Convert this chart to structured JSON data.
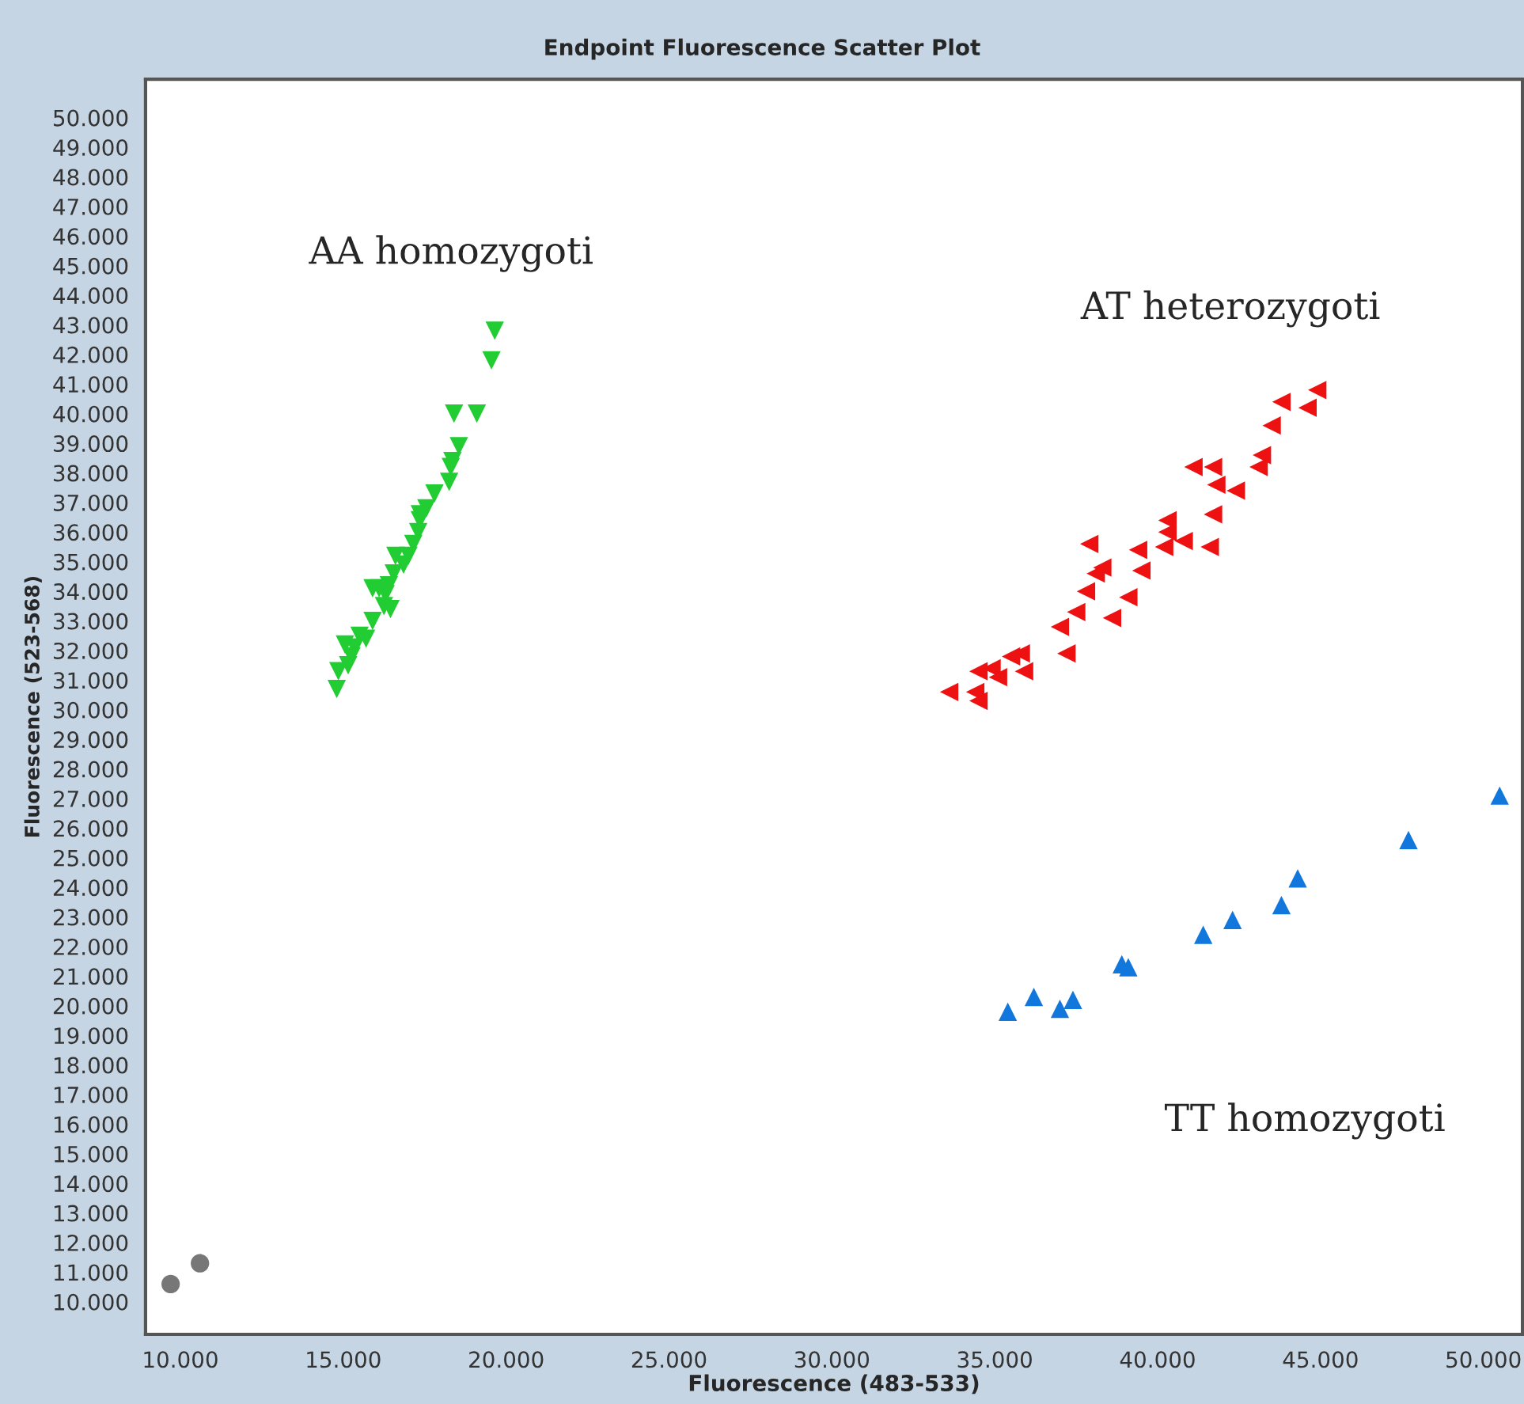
{
  "chart_data": {
    "type": "scatter",
    "title": "Endpoint Fluorescence Scatter Plot",
    "xlabel": "Fluorescence (483-533)",
    "ylabel": "Fluorescence (523-568)",
    "xlim": [
      8930,
      51200
    ],
    "ylim": [
      8900,
      51300
    ],
    "xticks": [
      {
        "value": 10000,
        "label": "10.000"
      },
      {
        "value": 15000,
        "label": "15.000"
      },
      {
        "value": 20000,
        "label": "20.000"
      },
      {
        "value": 25000,
        "label": "25.000"
      },
      {
        "value": 30000,
        "label": "30.000"
      },
      {
        "value": 35000,
        "label": "35.000"
      },
      {
        "value": 40000,
        "label": "40.000"
      },
      {
        "value": 45000,
        "label": "45.000"
      },
      {
        "value": 50000,
        "label": "50.000"
      }
    ],
    "yticks": [
      {
        "value": 10000,
        "label": "10.000"
      },
      {
        "value": 11000,
        "label": "11.000"
      },
      {
        "value": 12000,
        "label": "12.000"
      },
      {
        "value": 13000,
        "label": "13.000"
      },
      {
        "value": 14000,
        "label": "14.000"
      },
      {
        "value": 15000,
        "label": "15.000"
      },
      {
        "value": 16000,
        "label": "16.000"
      },
      {
        "value": 17000,
        "label": "17.000"
      },
      {
        "value": 18000,
        "label": "18.000"
      },
      {
        "value": 19000,
        "label": "19.000"
      },
      {
        "value": 20000,
        "label": "20.000"
      },
      {
        "value": 21000,
        "label": "21.000"
      },
      {
        "value": 22000,
        "label": "22.000"
      },
      {
        "value": 23000,
        "label": "23.000"
      },
      {
        "value": 24000,
        "label": "24.000"
      },
      {
        "value": 25000,
        "label": "25.000"
      },
      {
        "value": 26000,
        "label": "26.000"
      },
      {
        "value": 27000,
        "label": "27.000"
      },
      {
        "value": 28000,
        "label": "28.000"
      },
      {
        "value": 29000,
        "label": "29.000"
      },
      {
        "value": 30000,
        "label": "30.000"
      },
      {
        "value": 31000,
        "label": "31.000"
      },
      {
        "value": 32000,
        "label": "32.000"
      },
      {
        "value": 33000,
        "label": "33.000"
      },
      {
        "value": 34000,
        "label": "34.000"
      },
      {
        "value": 35000,
        "label": "35.000"
      },
      {
        "value": 36000,
        "label": "36.000"
      },
      {
        "value": 37000,
        "label": "37.000"
      },
      {
        "value": 38000,
        "label": "38.000"
      },
      {
        "value": 39000,
        "label": "39.000"
      },
      {
        "value": 40000,
        "label": "40.000"
      },
      {
        "value": 41000,
        "label": "41.000"
      },
      {
        "value": 42000,
        "label": "42.000"
      },
      {
        "value": 43000,
        "label": "43.000"
      },
      {
        "value": 44000,
        "label": "44.000"
      },
      {
        "value": 45000,
        "label": "45.000"
      },
      {
        "value": 46000,
        "label": "46.000"
      },
      {
        "value": 47000,
        "label": "47.000"
      },
      {
        "value": 48000,
        "label": "48.000"
      },
      {
        "value": 49000,
        "label": "49.000"
      },
      {
        "value": 50000,
        "label": "50.000"
      }
    ],
    "grid": false,
    "legend": false,
    "series": [
      {
        "color": "#22cc33",
        "marker": "triangle_down",
        "x": [
          19650,
          19550,
          19100,
          18400,
          18550,
          18350,
          18300,
          18250,
          17800,
          17550,
          17350,
          17350,
          17300,
          17150,
          17000,
          16850,
          16600,
          16550,
          16400,
          16300,
          16100,
          15900,
          16250,
          16450,
          15900,
          15700,
          15500,
          15350,
          15250,
          15150,
          15050,
          14850,
          14800
        ],
        "values": [
          42800,
          41800,
          40000,
          40000,
          38900,
          38400,
          38200,
          37700,
          37300,
          36800,
          36600,
          36400,
          36000,
          35600,
          35200,
          34900,
          35200,
          34600,
          34200,
          33900,
          34100,
          34100,
          33500,
          33400,
          33000,
          32400,
          32500,
          32100,
          31800,
          31500,
          32200,
          31300,
          30700
        ]
      },
      {
        "color": "#ee1111",
        "marker": "triangle_left",
        "x": [
          44900,
          43800,
          44600,
          43500,
          43200,
          43100,
          41100,
          41700,
          41800,
          42400,
          41700,
          40300,
          40300,
          40800,
          41600,
          40200,
          39400,
          37900,
          38300,
          39500,
          38100,
          37800,
          39100,
          37500,
          38600,
          37000,
          37200,
          35800,
          35500,
          34900,
          35900,
          35100,
          34500,
          33600,
          34400,
          34500
        ],
        "values": [
          40800,
          40400,
          40200,
          39600,
          38600,
          38200,
          38200,
          38200,
          37600,
          37400,
          36600,
          36400,
          36000,
          35700,
          35500,
          35500,
          35400,
          35600,
          34800,
          34700,
          34600,
          34000,
          33800,
          33300,
          33100,
          32800,
          31900,
          31900,
          31800,
          31400,
          31300,
          31100,
          31300,
          30600,
          30600,
          30300
        ]
      },
      {
        "color": "#1177dd",
        "marker": "triangle",
        "x": [
          50500,
          47700,
          44300,
          43800,
          42300,
          41400,
          38900,
          39100,
          37400,
          36200,
          37000,
          35400
        ],
        "values": [
          27100,
          25600,
          24300,
          23400,
          22900,
          22400,
          21400,
          21300,
          20200,
          20300,
          19900,
          19800
        ]
      },
      {
        "color": "#777777",
        "marker": "circle",
        "x": [
          9700,
          10600
        ],
        "values": [
          10600,
          11300
        ]
      }
    ],
    "annotations": [
      "AA homozygoti",
      "AT heterozygoti",
      "TT homozygoti"
    ]
  }
}
